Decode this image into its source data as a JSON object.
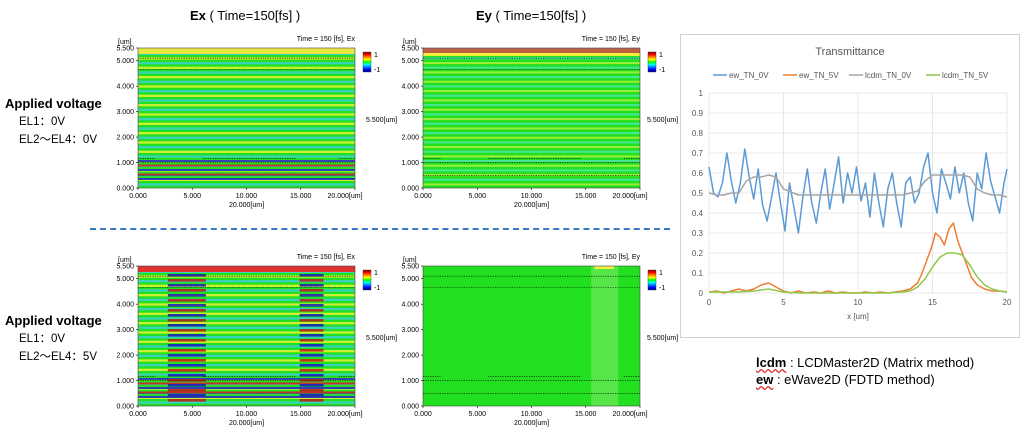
{
  "headers": {
    "ex": {
      "bold": "Ex",
      "rest": " ( Time=150[fs] )"
    },
    "ey": {
      "bold": "Ey",
      "rest": " ( Time=150[fs] )"
    }
  },
  "row_labels": [
    {
      "title": "Applied voltage",
      "line1": "EL1：0V",
      "line2": "EL2～EL4：0V"
    },
    {
      "title": "Applied voltage",
      "line1": "EL1：0V",
      "line2": "EL2～EL4：5V"
    }
  ],
  "maps": [
    {
      "title": "Time = 150 [fs], Ex",
      "colorbar_max": "1",
      "colorbar_min": "-1",
      "side_label": "5.500[um]",
      "y_unit": "[um]",
      "y_ticks": [
        "5.500",
        "5.000",
        "4.000",
        "3.000",
        "2.000",
        "1.000",
        "0.000"
      ],
      "x_ticks": [
        "0.000",
        "5.000",
        "10.000",
        "15.000",
        "20.000[um]"
      ],
      "x_label": "20.000[um]"
    },
    {
      "title": "Time = 150 [fs], Ey",
      "colorbar_max": "1",
      "colorbar_min": "-1",
      "side_label": "5.500[um]",
      "y_unit": "[um]",
      "y_ticks": [
        "5.500",
        "5.000",
        "4.000",
        "3.000",
        "2.000",
        "1.000",
        "0.000"
      ],
      "x_ticks": [
        "0.000",
        "5.000",
        "10.000",
        "15.000",
        "20.000[um]"
      ],
      "x_label": "20.000[um]"
    },
    {
      "title": "Time = 150 [fs], Ex",
      "colorbar_max": "1",
      "colorbar_min": "-1",
      "side_label": "5.500[um]",
      "y_unit": "[um]",
      "y_ticks": [
        "5.500",
        "5.000",
        "4.000",
        "3.000",
        "2.000",
        "1.000",
        "0.000"
      ],
      "x_ticks": [
        "0.000",
        "5.000",
        "10.000",
        "15.000",
        "20.000[um]"
      ],
      "x_label": "20.000[um]"
    },
    {
      "title": "Time = 150 [fs], Ey",
      "colorbar_max": "1",
      "colorbar_min": "-1",
      "side_label": "5.500[um]",
      "y_unit": "[um]",
      "y_ticks": [
        "5.500",
        "5.000",
        "4.000",
        "3.000",
        "2.000",
        "1.000",
        "0.000"
      ],
      "x_ticks": [
        "0.000",
        "5.000",
        "10.000",
        "15.000",
        "20.000[um]"
      ],
      "x_label": "20.000[um]"
    }
  ],
  "legend_notes": {
    "lcdm_key": "lcdm",
    "lcdm_text": " : LCDMaster2D (Matrix method)",
    "ew_key": "ew",
    "ew_text": " : eWave2D (FDTD method)"
  },
  "chart_data": {
    "type": "line",
    "title": "Transmittance",
    "xlabel": "x [um]",
    "ylabel": "",
    "xlim": [
      0,
      20
    ],
    "ylim": [
      0,
      1
    ],
    "x_ticks": [
      0,
      5,
      10,
      15,
      20
    ],
    "y_ticks": [
      0,
      0.1,
      0.2,
      0.3,
      0.4,
      0.5,
      0.6,
      0.7,
      0.8,
      0.9,
      1
    ],
    "grid": true,
    "legend_position": "top",
    "series": [
      {
        "name": "ew_TN_0V",
        "color": "#5b9bd5",
        "x": [
          0,
          0.3,
          0.6,
          0.9,
          1.2,
          1.5,
          1.8,
          2.1,
          2.4,
          2.7,
          3.0,
          3.3,
          3.6,
          3.9,
          4.2,
          4.5,
          4.8,
          5.1,
          5.4,
          5.7,
          6.0,
          6.3,
          6.6,
          6.9,
          7.2,
          7.5,
          7.8,
          8.1,
          8.4,
          8.7,
          9.0,
          9.3,
          9.6,
          9.9,
          10.2,
          10.5,
          10.8,
          11.1,
          11.4,
          11.7,
          12.0,
          12.3,
          12.6,
          12.9,
          13.2,
          13.5,
          13.8,
          14.1,
          14.4,
          14.7,
          15.0,
          15.3,
          15.6,
          15.9,
          16.2,
          16.5,
          16.8,
          17.1,
          17.4,
          17.7,
          18.0,
          18.3,
          18.6,
          18.9,
          19.2,
          19.5,
          19.8,
          20.0
        ],
        "values": [
          0.63,
          0.5,
          0.48,
          0.55,
          0.7,
          0.56,
          0.45,
          0.55,
          0.72,
          0.58,
          0.47,
          0.62,
          0.44,
          0.36,
          0.48,
          0.6,
          0.45,
          0.31,
          0.55,
          0.43,
          0.3,
          0.48,
          0.62,
          0.45,
          0.35,
          0.5,
          0.62,
          0.42,
          0.55,
          0.68,
          0.45,
          0.6,
          0.5,
          0.63,
          0.46,
          0.55,
          0.38,
          0.6,
          0.45,
          0.33,
          0.52,
          0.6,
          0.45,
          0.33,
          0.55,
          0.58,
          0.45,
          0.5,
          0.63,
          0.7,
          0.5,
          0.4,
          0.62,
          0.55,
          0.47,
          0.63,
          0.5,
          0.6,
          0.45,
          0.36,
          0.6,
          0.52,
          0.7,
          0.56,
          0.48,
          0.4,
          0.55,
          0.62
        ]
      },
      {
        "name": "ew_TN_5V",
        "color": "#ed7d31",
        "x": [
          0,
          0.5,
          1,
          1.5,
          2,
          2.5,
          3,
          3.5,
          4,
          4.5,
          5,
          5.5,
          6,
          6.5,
          7,
          7.5,
          8,
          8.5,
          9,
          9.5,
          10,
          10.5,
          11,
          11.5,
          12,
          12.5,
          13,
          13.5,
          14,
          14.3,
          14.6,
          14.9,
          15.2,
          15.5,
          15.8,
          16.1,
          16.4,
          16.7,
          17.0,
          17.3,
          17.6,
          18,
          18.5,
          19,
          19.5,
          20
        ],
        "values": [
          0.005,
          0.01,
          0.0,
          0.01,
          0.02,
          0.01,
          0.02,
          0.04,
          0.05,
          0.03,
          0.01,
          0.0,
          0.01,
          0.0,
          0.005,
          0.0,
          0.01,
          0.0,
          0.005,
          0.0,
          0.0,
          0.005,
          0.0,
          0.005,
          0.0,
          0.005,
          0.01,
          0.02,
          0.05,
          0.1,
          0.16,
          0.22,
          0.3,
          0.28,
          0.24,
          0.32,
          0.35,
          0.26,
          0.2,
          0.14,
          0.08,
          0.04,
          0.02,
          0.01,
          0.01,
          0.005
        ]
      },
      {
        "name": "lcdm_TN_0V",
        "color": "#a5a5a5",
        "x": [
          0,
          0.5,
          1,
          1.5,
          2,
          2.5,
          3,
          3.5,
          4,
          4.5,
          5,
          6,
          7,
          8,
          9,
          10,
          11,
          12,
          13,
          13.5,
          14,
          14.5,
          15,
          16,
          17,
          17.5,
          18,
          18.5,
          19,
          19.5,
          20
        ],
        "values": [
          0.5,
          0.49,
          0.49,
          0.5,
          0.5,
          0.56,
          0.58,
          0.58,
          0.59,
          0.58,
          0.52,
          0.49,
          0.49,
          0.49,
          0.49,
          0.49,
          0.49,
          0.49,
          0.49,
          0.5,
          0.51,
          0.56,
          0.59,
          0.59,
          0.59,
          0.58,
          0.52,
          0.5,
          0.49,
          0.49,
          0.48
        ]
      },
      {
        "name": "lcdm_TN_5V",
        "color": "#8fc84a",
        "x": [
          0,
          1,
          2,
          3,
          4,
          5,
          6,
          7,
          8,
          9,
          10,
          11,
          12,
          13,
          13.5,
          14,
          14.5,
          15,
          15.5,
          16,
          16.5,
          17,
          17.5,
          18,
          18.5,
          19,
          19.5,
          20
        ],
        "values": [
          0.005,
          0.005,
          0.005,
          0.01,
          0.02,
          0.005,
          0.0,
          0.0,
          0.0,
          0.0,
          0.0,
          0.0,
          0.0,
          0.005,
          0.01,
          0.03,
          0.07,
          0.13,
          0.18,
          0.2,
          0.2,
          0.19,
          0.14,
          0.08,
          0.04,
          0.02,
          0.01,
          0.005
        ]
      }
    ]
  }
}
